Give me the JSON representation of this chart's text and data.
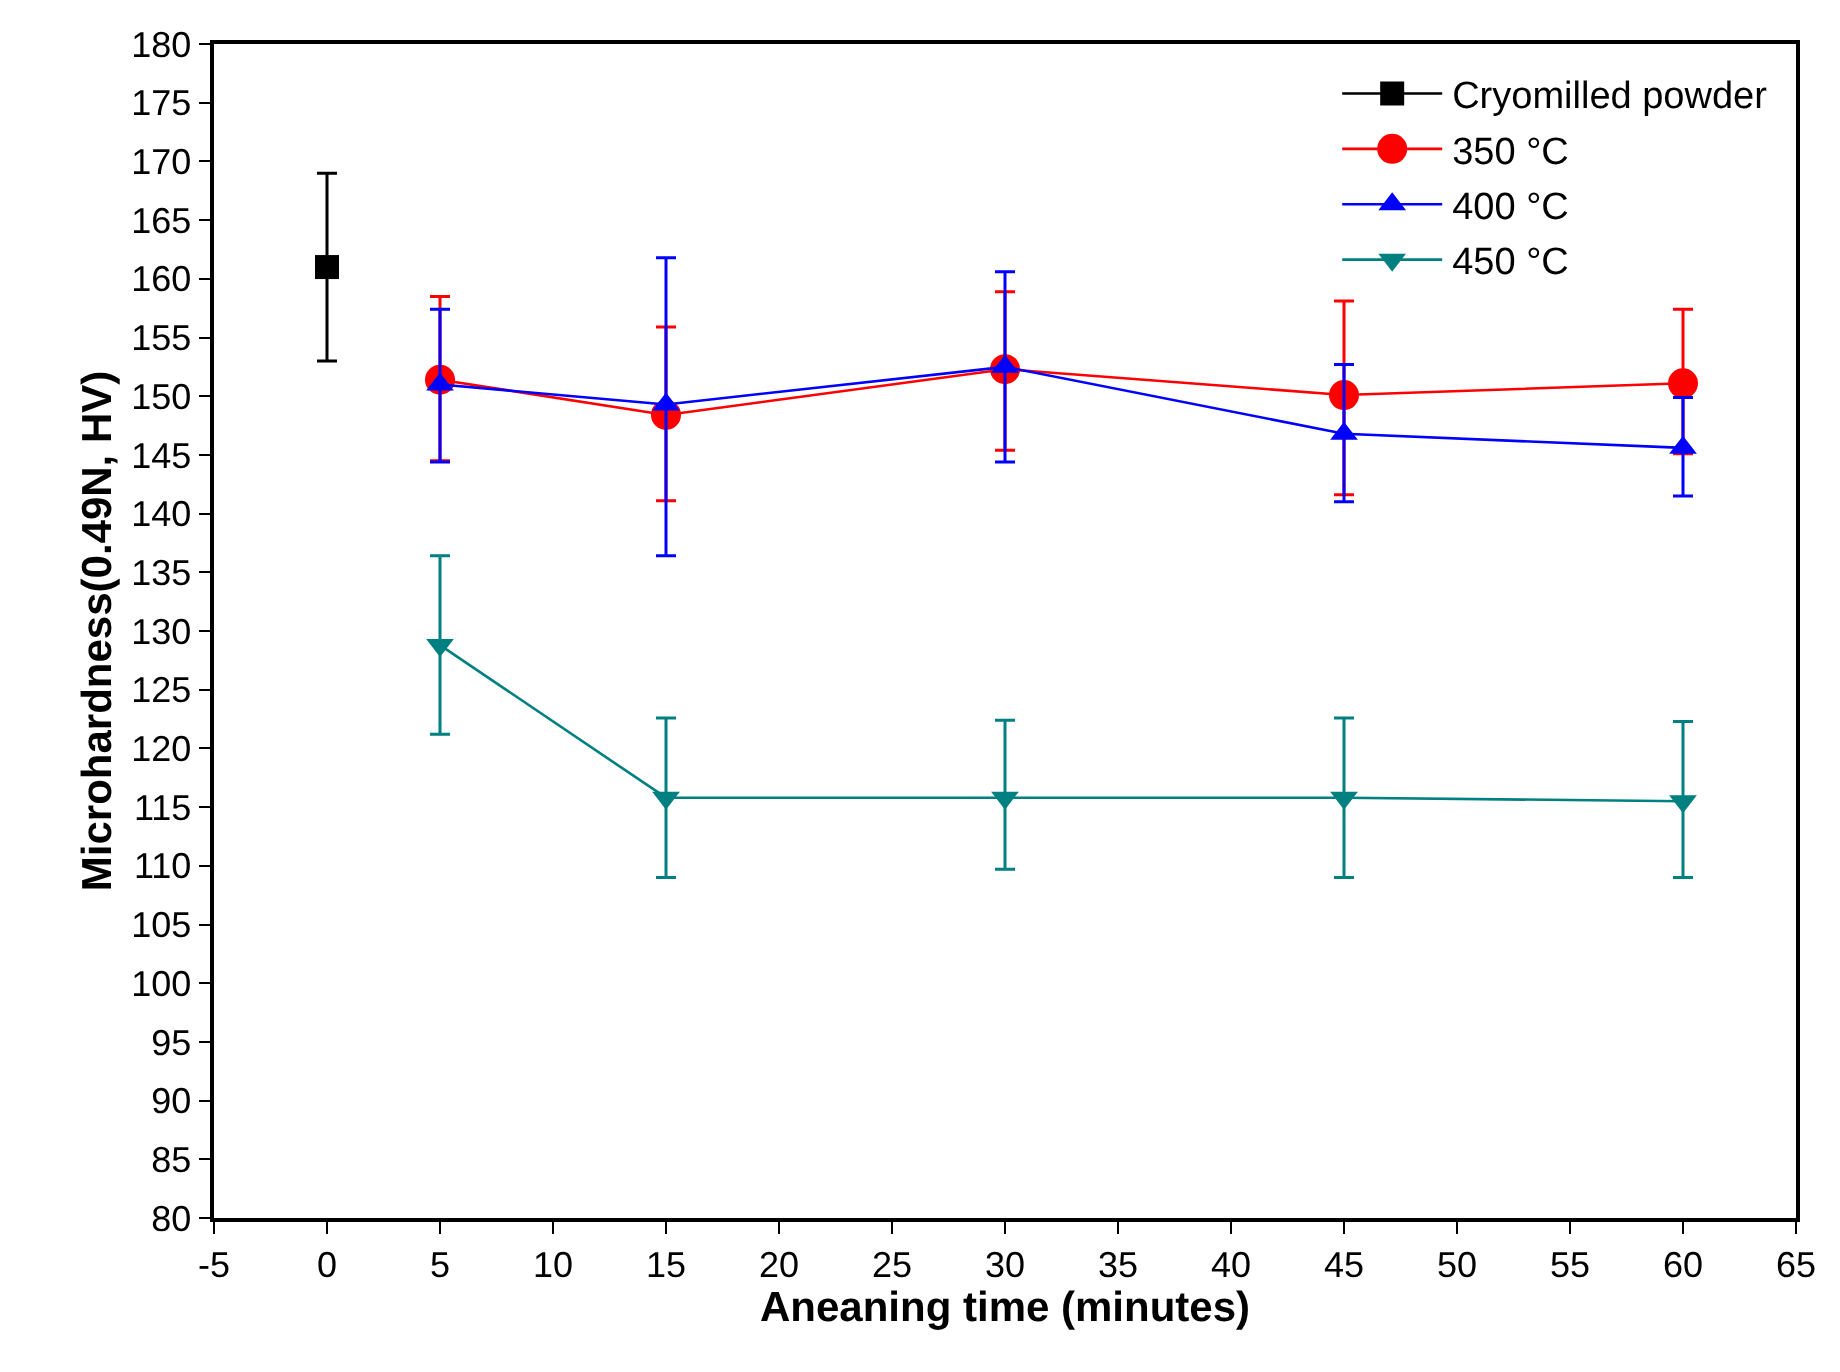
{
  "chart_data": {
    "type": "line",
    "xlabel": "Aneaning time (minutes)",
    "ylabel": "Microhardness(0.49N, HV)",
    "xlim": [
      -5,
      65
    ],
    "xticks": [
      -5,
      0,
      5,
      10,
      15,
      20,
      25,
      30,
      35,
      40,
      45,
      50,
      55,
      60,
      65
    ],
    "ylim": [
      80,
      180
    ],
    "yticks": [
      80,
      85,
      90,
      95,
      100,
      105,
      110,
      115,
      120,
      125,
      130,
      135,
      140,
      145,
      150,
      155,
      160,
      165,
      170,
      175,
      180
    ],
    "legend": "top right",
    "line_style": "solid",
    "series": [
      {
        "name": "Cryomilled powder",
        "color": "#000000",
        "marker": "square",
        "x": [
          0
        ],
        "values": [
          161
        ],
        "errors": [
          [
            153,
            169
          ]
        ]
      },
      {
        "name": "350 °C",
        "color": "#ff0000",
        "marker": "circle",
        "x": [
          5,
          15,
          30,
          45,
          60
        ],
        "values": [
          151.4,
          148.4,
          152.3,
          150.1,
          151.1
        ],
        "errors": [
          [
            144.5,
            158.5
          ],
          [
            141.1,
            155.9
          ],
          [
            145.4,
            158.9
          ],
          [
            141.6,
            158.1
          ],
          [
            145.1,
            157.4
          ]
        ]
      },
      {
        "name": "400 °C",
        "color": "#0000ff",
        "marker": "triangle",
        "x": [
          5,
          15,
          30,
          45,
          60
        ],
        "values": [
          151,
          149.3,
          152.5,
          146.8,
          145.6
        ],
        "errors": [
          [
            144.4,
            157.4
          ],
          [
            136.4,
            161.8
          ],
          [
            144.4,
            160.6
          ],
          [
            141,
            152.7
          ],
          [
            141.5,
            149.9
          ]
        ]
      },
      {
        "name": "450 °C",
        "color": "#008080",
        "marker": "triangle-down",
        "x": [
          5,
          15,
          30,
          45,
          60
        ],
        "values": [
          128.8,
          115.8,
          115.8,
          115.8,
          115.5
        ],
        "errors": [
          [
            121.2,
            136.4
          ],
          [
            109,
            122.6
          ],
          [
            109.7,
            122.4
          ],
          [
            109,
            122.6
          ],
          [
            109,
            122.3
          ]
        ]
      }
    ]
  }
}
